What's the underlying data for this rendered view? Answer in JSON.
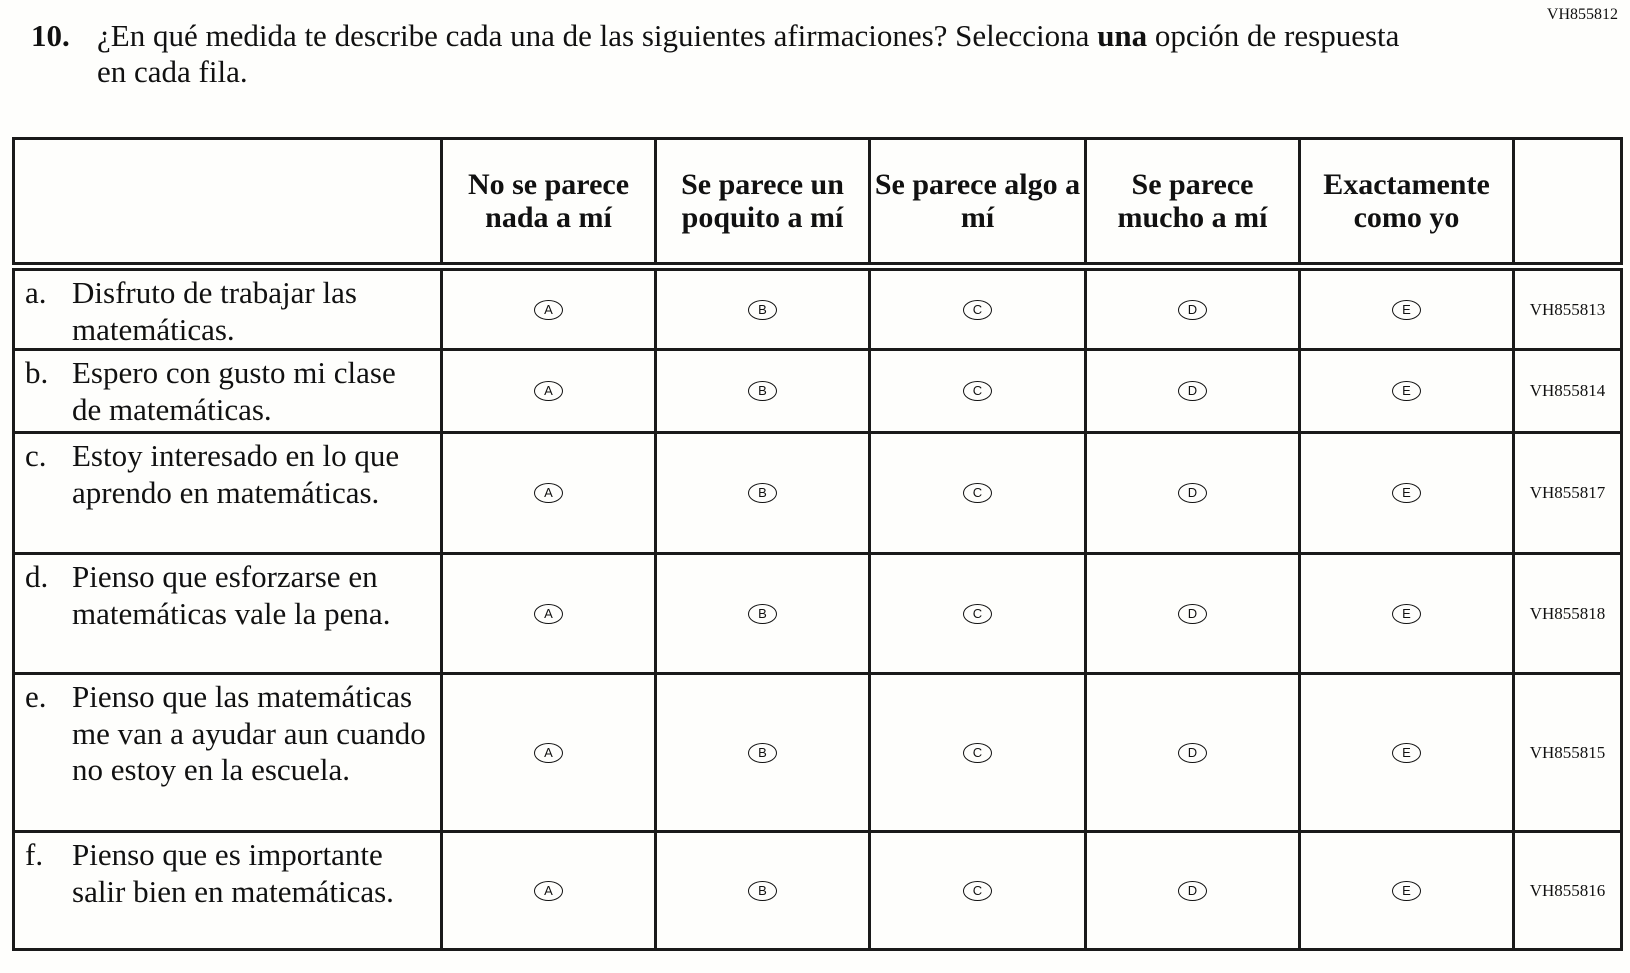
{
  "item_code": "VH855812",
  "question": {
    "number": "10.",
    "text_before": "¿En qué medida te describe cada una de las siguientes afirmaciones? Selecciona ",
    "text_bold": "una",
    "text_after": " opción de respuesta en cada fila."
  },
  "columns": [
    "No se parece nada a mí",
    "Se parece un poquito a mí",
    "Se parece algo a mí",
    "Se parece mucho a mí",
    "Exactamente como yo"
  ],
  "options": [
    "A",
    "B",
    "C",
    "D",
    "E"
  ],
  "rows": [
    {
      "letter": "a.",
      "text": "Disfruto de trabajar las matemáticas.",
      "code": "VH855813"
    },
    {
      "letter": "b.",
      "text": "Espero con gusto mi clase de matemáticas.",
      "code": "VH855814"
    },
    {
      "letter": "c.",
      "text": "Estoy interesado en lo que aprendo en matemáticas.",
      "code": "VH855817"
    },
    {
      "letter": "d.",
      "text": "Pienso que esforzarse en matemáticas vale la pena.",
      "code": "VH855818"
    },
    {
      "letter": "e.",
      "text": "Pienso que las matemáticas me van a ayudar aun cuando no estoy en la escuela.",
      "code": "VH855815"
    },
    {
      "letter": "f.",
      "text": "Pienso que es importante salir bien en matemáticas.",
      "code": "VH855816"
    }
  ]
}
